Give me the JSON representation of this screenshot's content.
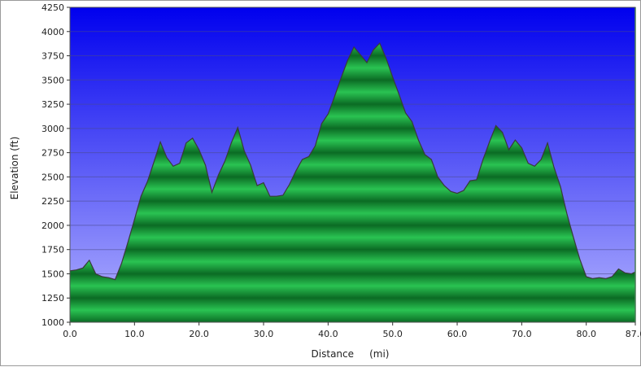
{
  "chart_data": {
    "type": "area",
    "xlabel": "Distance     (mi)",
    "ylabel": "Elevation (ft)",
    "xlim": [
      0,
      87.6
    ],
    "ylim": [
      1000,
      4250
    ],
    "x_ticks": [
      "0.0",
      "10.0",
      "20.0",
      "30.0",
      "40.0",
      "50.0",
      "60.0",
      "70.0",
      "80.0",
      "87.6"
    ],
    "y_ticks": [
      "1000",
      "1250",
      "1500",
      "1750",
      "2000",
      "2250",
      "2500",
      "2750",
      "3000",
      "3250",
      "3500",
      "3750",
      "4000",
      "4250"
    ],
    "grid": true,
    "colors": {
      "background_top": "#0000ee",
      "background_bottom": "#b4b4ff",
      "fill_dark": "#0b6b24",
      "fill_light": "#2ac352",
      "outline": "#3a3a3a",
      "gridline": "#4a4a8a"
    },
    "x": [
      0,
      1,
      2,
      3,
      4,
      5,
      6,
      7,
      8,
      9,
      10,
      11,
      12,
      13,
      14,
      15,
      16,
      17,
      18,
      19,
      20,
      21,
      22,
      23,
      24,
      25,
      26,
      27,
      28,
      29,
      30,
      31,
      32,
      33,
      34,
      35,
      36,
      37,
      38,
      39,
      40,
      41,
      42,
      43,
      44,
      45,
      46,
      47,
      48,
      49,
      50,
      51,
      52,
      53,
      54,
      55,
      56,
      57,
      58,
      59,
      60,
      61,
      62,
      63,
      64,
      65,
      66,
      67,
      68,
      69,
      70,
      71,
      72,
      73,
      74,
      75,
      76,
      77,
      78,
      79,
      80,
      81,
      82,
      83,
      84,
      85,
      86,
      87,
      87.6
    ],
    "y": [
      1530,
      1540,
      1560,
      1640,
      1500,
      1470,
      1460,
      1440,
      1610,
      1830,
      2060,
      2300,
      2450,
      2650,
      2860,
      2700,
      2610,
      2640,
      2850,
      2900,
      2780,
      2620,
      2340,
      2520,
      2660,
      2850,
      3010,
      2770,
      2620,
      2410,
      2440,
      2300,
      2300,
      2310,
      2420,
      2560,
      2680,
      2710,
      2820,
      3050,
      3150,
      3330,
      3520,
      3700,
      3840,
      3760,
      3680,
      3810,
      3880,
      3720,
      3530,
      3350,
      3160,
      3070,
      2880,
      2730,
      2680,
      2500,
      2410,
      2350,
      2330,
      2360,
      2460,
      2470,
      2680,
      2860,
      3030,
      2960,
      2780,
      2880,
      2800,
      2640,
      2610,
      2680,
      2850,
      2600,
      2400,
      2120,
      1880,
      1650,
      1470,
      1450,
      1460,
      1450,
      1470,
      1550,
      1510,
      1500,
      1520
    ]
  }
}
